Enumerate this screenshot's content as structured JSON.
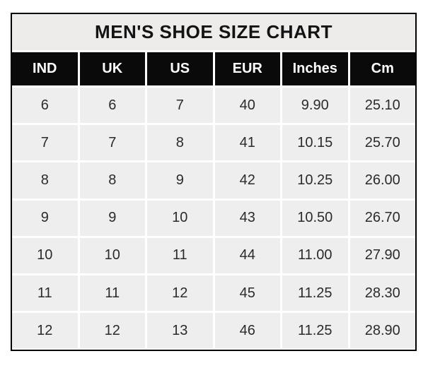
{
  "page": {
    "background": "#ffffff"
  },
  "table": {
    "title": "MEN'S SHOE SIZE CHART",
    "columns": [
      "IND",
      "UK",
      "US",
      "EUR",
      "Inches",
      "Cm"
    ],
    "rows": [
      [
        "6",
        "6",
        "7",
        "40",
        "9.90",
        "25.10"
      ],
      [
        "7",
        "7",
        "8",
        "41",
        "10.15",
        "25.70"
      ],
      [
        "8",
        "8",
        "9",
        "42",
        "10.25",
        "26.00"
      ],
      [
        "9",
        "9",
        "10",
        "43",
        "10.50",
        "26.70"
      ],
      [
        "10",
        "10",
        "11",
        "44",
        "11.00",
        "27.90"
      ],
      [
        "11",
        "11",
        "12",
        "45",
        "11.25",
        "28.30"
      ],
      [
        "12",
        "12",
        "13",
        "46",
        "11.25",
        "28.90"
      ]
    ]
  },
  "chart_data": {
    "type": "table",
    "title": "MEN'S SHOE SIZE CHART",
    "columns": [
      "IND",
      "UK",
      "US",
      "EUR",
      "Inches",
      "Cm"
    ],
    "rows": [
      [
        6,
        6,
        7,
        40,
        9.9,
        25.1
      ],
      [
        7,
        7,
        8,
        41,
        10.15,
        25.7
      ],
      [
        8,
        8,
        9,
        42,
        10.25,
        26.0
      ],
      [
        9,
        9,
        10,
        43,
        10.5,
        26.7
      ],
      [
        10,
        10,
        11,
        44,
        11.0,
        27.9
      ],
      [
        11,
        11,
        12,
        45,
        11.25,
        28.3
      ],
      [
        12,
        12,
        13,
        46,
        11.25,
        28.9
      ]
    ],
    "layout": {
      "header_style": "black-band-white-text",
      "grid": "white-separators",
      "title_position": "top-center"
    }
  },
  "colors": {
    "border": "#000000",
    "title_bg": "#edeceb",
    "header_bg": "#0a0a0a",
    "header_text": "#fefefe",
    "cell_bg": "#efeeee",
    "cell_text": "#2b2b2b",
    "grid_line": "#ffffff"
  }
}
